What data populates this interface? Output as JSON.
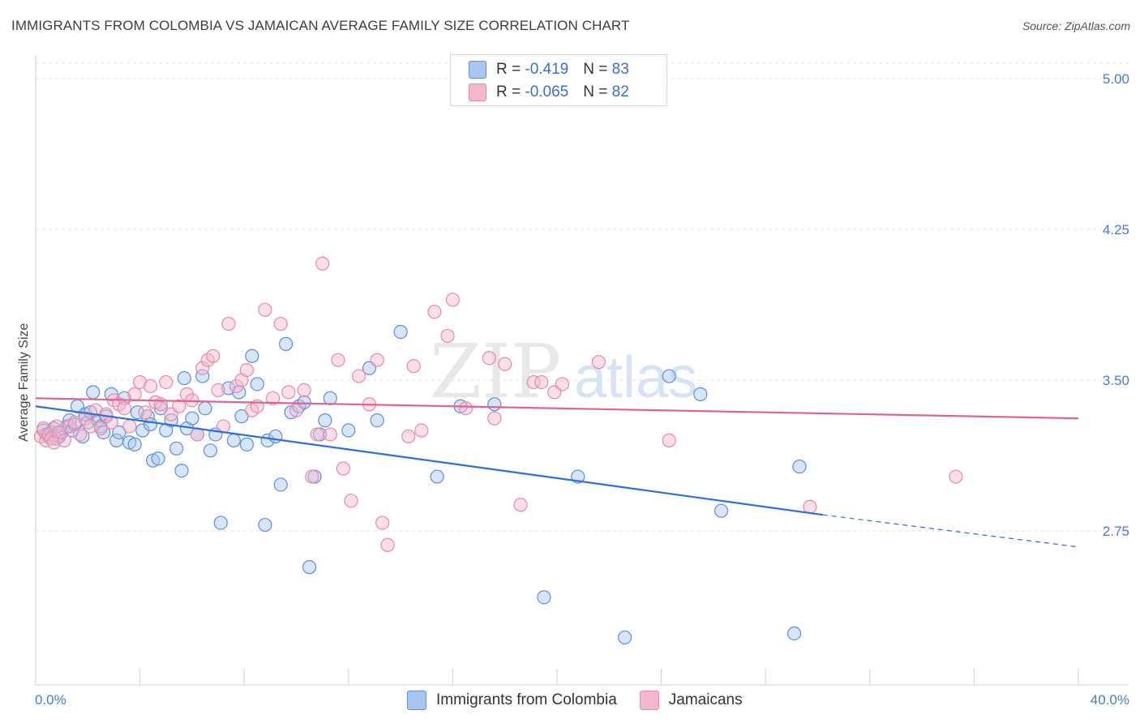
{
  "title": "IMMIGRANTS FROM COLOMBIA VS JAMAICAN AVERAGE FAMILY SIZE CORRELATION CHART",
  "source": "Source: ZipAtlas.com",
  "watermark": "ZIPatlas",
  "legend": {
    "row1": {
      "r_label": "R = ",
      "r_value": "-0.419",
      "n_label": "N = ",
      "n_value": "83"
    },
    "row2": {
      "r_label": "R = ",
      "r_value": "-0.065",
      "n_label": "N = ",
      "n_value": "82"
    }
  },
  "bottom_legend": {
    "s1": "Immigrants from Colombia",
    "s2": "Jamaicans"
  },
  "colors": {
    "blue_fill": "#a8c6f0",
    "blue_stroke": "#5b8fd9",
    "blue_line": "#2f6fd6",
    "pink_fill": "#f5b8cb",
    "pink_stroke": "#e889a8",
    "pink_line": "#e0648f"
  },
  "chart_data": {
    "type": "scatter",
    "title": "IMMIGRANTS FROM COLOMBIA VS JAMAICAN AVERAGE FAMILY SIZE CORRELATION CHART",
    "xlabel": "",
    "ylabel": "Average Family Size",
    "xlim": [
      0,
      40
    ],
    "ylim": [
      2.1,
      5.1
    ],
    "x_tick_labels": [
      "0.0%",
      "40.0%"
    ],
    "y_ticks": [
      2.75,
      3.5,
      4.25,
      5.0
    ],
    "y_tick_labels": [
      "2.75",
      "3.50",
      "4.25",
      "5.00"
    ],
    "grid": true,
    "legend_position": "top-center",
    "series": [
      {
        "name": "Immigrants from Colombia",
        "trend": {
          "x": [
            0,
            30.2
          ],
          "y": [
            3.37,
            2.83
          ],
          "dashed_to": [
            40,
            2.67
          ]
        },
        "points": [
          [
            0.3,
            3.25
          ],
          [
            0.4,
            3.23
          ],
          [
            0.5,
            3.22
          ],
          [
            0.6,
            3.24
          ],
          [
            0.7,
            3.26
          ],
          [
            0.8,
            3.21
          ],
          [
            0.9,
            3.22
          ],
          [
            1.0,
            3.24
          ],
          [
            1.2,
            3.27
          ],
          [
            1.3,
            3.3
          ],
          [
            1.4,
            3.25
          ],
          [
            1.5,
            3.28
          ],
          [
            1.6,
            3.37
          ],
          [
            1.8,
            3.22
          ],
          [
            1.9,
            3.33
          ],
          [
            2.0,
            3.29
          ],
          [
            2.1,
            3.34
          ],
          [
            2.2,
            3.44
          ],
          [
            2.4,
            3.3
          ],
          [
            2.5,
            3.27
          ],
          [
            2.6,
            3.24
          ],
          [
            2.7,
            3.32
          ],
          [
            2.9,
            3.43
          ],
          [
            3.1,
            3.2
          ],
          [
            3.2,
            3.24
          ],
          [
            3.4,
            3.41
          ],
          [
            3.6,
            3.19
          ],
          [
            3.8,
            3.18
          ],
          [
            3.9,
            3.34
          ],
          [
            4.1,
            3.25
          ],
          [
            4.3,
            3.32
          ],
          [
            4.4,
            3.28
          ],
          [
            4.5,
            3.1
          ],
          [
            4.7,
            3.11
          ],
          [
            4.8,
            3.36
          ],
          [
            5.0,
            3.25
          ],
          [
            5.2,
            3.3
          ],
          [
            5.4,
            3.16
          ],
          [
            5.6,
            3.05
          ],
          [
            5.7,
            3.51
          ],
          [
            5.8,
            3.26
          ],
          [
            6.0,
            3.31
          ],
          [
            6.2,
            3.23
          ],
          [
            6.4,
            3.52
          ],
          [
            6.5,
            3.36
          ],
          [
            6.7,
            3.15
          ],
          [
            6.9,
            3.23
          ],
          [
            7.1,
            2.79
          ],
          [
            7.4,
            3.46
          ],
          [
            7.6,
            3.2
          ],
          [
            7.8,
            3.44
          ],
          [
            7.9,
            3.32
          ],
          [
            8.1,
            3.18
          ],
          [
            8.3,
            3.62
          ],
          [
            8.5,
            3.48
          ],
          [
            8.8,
            2.78
          ],
          [
            8.9,
            3.2
          ],
          [
            9.2,
            3.22
          ],
          [
            9.4,
            2.98
          ],
          [
            9.6,
            3.68
          ],
          [
            9.8,
            3.34
          ],
          [
            10.1,
            3.37
          ],
          [
            10.3,
            3.39
          ],
          [
            10.5,
            2.57
          ],
          [
            10.7,
            3.02
          ],
          [
            10.9,
            3.23
          ],
          [
            11.1,
            3.3
          ],
          [
            11.3,
            3.41
          ],
          [
            12.0,
            3.25
          ],
          [
            12.8,
            3.56
          ],
          [
            13.1,
            3.3
          ],
          [
            14.0,
            3.74
          ],
          [
            15.4,
            3.02
          ],
          [
            16.3,
            3.37
          ],
          [
            17.6,
            3.38
          ],
          [
            19.5,
            2.42
          ],
          [
            20.8,
            3.02
          ],
          [
            22.6,
            2.22
          ],
          [
            24.3,
            3.52
          ],
          [
            26.3,
            2.85
          ],
          [
            29.1,
            2.24
          ],
          [
            29.3,
            3.07
          ],
          [
            25.5,
            3.43
          ]
        ]
      },
      {
        "name": "Jamaicans",
        "trend": {
          "x": [
            0,
            40
          ],
          "y": [
            3.41,
            3.31
          ]
        },
        "points": [
          [
            0.2,
            3.22
          ],
          [
            0.3,
            3.26
          ],
          [
            0.4,
            3.2
          ],
          [
            0.5,
            3.23
          ],
          [
            0.6,
            3.21
          ],
          [
            0.7,
            3.19
          ],
          [
            0.8,
            3.27
          ],
          [
            0.9,
            3.24
          ],
          [
            1.1,
            3.2
          ],
          [
            1.3,
            3.27
          ],
          [
            1.5,
            3.29
          ],
          [
            1.7,
            3.23
          ],
          [
            1.9,
            3.31
          ],
          [
            2.1,
            3.27
          ],
          [
            2.3,
            3.35
          ],
          [
            2.5,
            3.26
          ],
          [
            2.7,
            3.33
          ],
          [
            2.9,
            3.29
          ],
          [
            3.0,
            3.4
          ],
          [
            3.2,
            3.38
          ],
          [
            3.4,
            3.36
          ],
          [
            3.6,
            3.27
          ],
          [
            3.8,
            3.43
          ],
          [
            4.0,
            3.49
          ],
          [
            4.2,
            3.34
          ],
          [
            4.4,
            3.47
          ],
          [
            4.6,
            3.39
          ],
          [
            4.8,
            3.38
          ],
          [
            5.0,
            3.49
          ],
          [
            5.2,
            3.33
          ],
          [
            5.5,
            3.37
          ],
          [
            5.8,
            3.43
          ],
          [
            6.0,
            3.4
          ],
          [
            6.2,
            3.23
          ],
          [
            6.4,
            3.56
          ],
          [
            6.6,
            3.6
          ],
          [
            6.8,
            3.62
          ],
          [
            7.0,
            3.45
          ],
          [
            7.2,
            3.27
          ],
          [
            7.4,
            3.78
          ],
          [
            7.7,
            3.47
          ],
          [
            7.9,
            3.5
          ],
          [
            8.1,
            3.55
          ],
          [
            8.3,
            3.35
          ],
          [
            8.5,
            3.37
          ],
          [
            8.8,
            3.85
          ],
          [
            9.1,
            3.41
          ],
          [
            9.4,
            3.78
          ],
          [
            9.7,
            3.44
          ],
          [
            10.0,
            3.35
          ],
          [
            10.3,
            3.45
          ],
          [
            10.6,
            3.02
          ],
          [
            10.8,
            3.23
          ],
          [
            11.0,
            4.08
          ],
          [
            11.3,
            3.23
          ],
          [
            11.6,
            3.6
          ],
          [
            11.8,
            3.06
          ],
          [
            12.1,
            2.9
          ],
          [
            12.4,
            3.52
          ],
          [
            12.8,
            3.38
          ],
          [
            13.1,
            3.6
          ],
          [
            13.3,
            2.79
          ],
          [
            13.5,
            2.68
          ],
          [
            14.3,
            3.22
          ],
          [
            14.5,
            3.57
          ],
          [
            14.8,
            3.25
          ],
          [
            15.3,
            3.84
          ],
          [
            15.8,
            3.72
          ],
          [
            16.0,
            3.9
          ],
          [
            16.5,
            3.36
          ],
          [
            17.4,
            3.61
          ],
          [
            17.6,
            3.31
          ],
          [
            18.0,
            3.58
          ],
          [
            18.6,
            2.88
          ],
          [
            19.1,
            3.49
          ],
          [
            19.4,
            3.49
          ],
          [
            19.9,
            3.44
          ],
          [
            20.2,
            3.48
          ],
          [
            21.6,
            3.59
          ],
          [
            24.3,
            3.2
          ],
          [
            29.7,
            2.87
          ],
          [
            35.3,
            3.02
          ]
        ]
      }
    ],
    "extra_points_note": ""
  }
}
